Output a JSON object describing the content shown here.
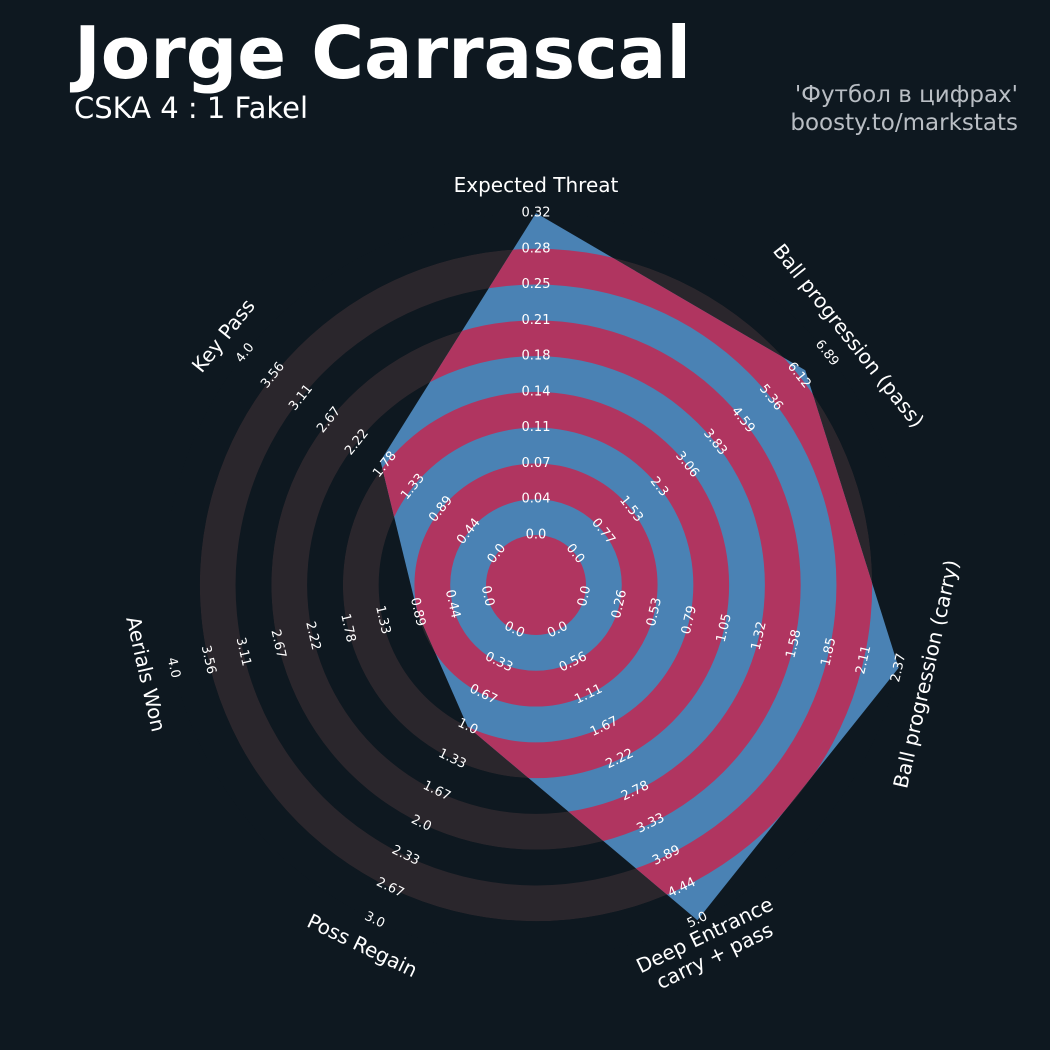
{
  "header": {
    "player": "Jorge Carrascal",
    "match": "CSKA 4 : 1 Fakel",
    "credit_line1": "'Футбол в цифрах'",
    "credit_line2": "boosty.to/markstats"
  },
  "colors": {
    "background": "#0e1820",
    "ring_dark": "#2a262c",
    "ring_light": "#0e1820",
    "player_fill": "#4a82b4",
    "player_highlight": "#b03560"
  },
  "chart_data": {
    "type": "radar",
    "title": "Jorge Carrascal",
    "subtitle": "CSKA 4 : 1 Fakel",
    "params": [
      "Expected Threat",
      "Ball progression (pass)",
      "Ball progression (carry)",
      "Deep Entrance\ncarry + pass",
      "Poss Regain",
      "Aerials Won",
      "Key Pass"
    ],
    "ranges": [
      [
        0,
        0.32
      ],
      [
        0,
        6.89
      ],
      [
        0,
        2.37
      ],
      [
        0,
        5.0
      ],
      [
        0,
        3.0
      ],
      [
        0,
        4.0
      ],
      [
        0,
        4.0
      ]
    ],
    "tick_labels": [
      [
        "0.0",
        "0.04",
        "0.07",
        "0.11",
        "0.14",
        "0.18",
        "0.21",
        "0.25",
        "0.28",
        "0.32"
      ],
      [
        "0.0",
        "0.77",
        "1.53",
        "2.3",
        "3.06",
        "3.83",
        "4.59",
        "5.36",
        "6.12",
        "6.89"
      ],
      [
        "0.0",
        "0.26",
        "0.53",
        "0.79",
        "1.05",
        "1.32",
        "1.58",
        "1.85",
        "2.11",
        "2.37"
      ],
      [
        "0.0",
        "0.56",
        "1.11",
        "1.67",
        "2.22",
        "2.78",
        "3.33",
        "3.89",
        "4.44",
        "5.0"
      ],
      [
        "0.0",
        "0.33",
        "0.67",
        "1.0",
        "1.33",
        "1.67",
        "2.0",
        "2.33",
        "2.67",
        "3.0"
      ],
      [
        "0.0",
        "0.44",
        "0.89",
        "1.33",
        "1.78",
        "2.22",
        "2.67",
        "3.11",
        "3.56",
        "4.0"
      ],
      [
        "0.0",
        "0.44",
        "0.89",
        "1.33",
        "1.78",
        "2.22",
        "2.67",
        "3.11",
        "3.56",
        "4.0"
      ]
    ],
    "values": [
      0.32,
      6.3,
      2.37,
      5.0,
      1.0,
      0.89,
      1.85
    ]
  }
}
